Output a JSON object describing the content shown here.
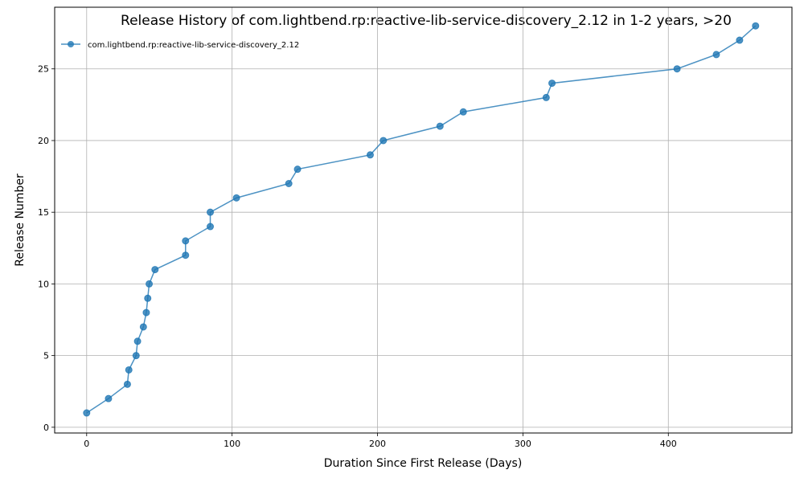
{
  "chart_data": {
    "type": "line",
    "title": "Release History of com.lightbend.rp:reactive-lib-service-discovery_2.12 in 1-2 years, >20",
    "xlabel": "Duration Since First Release (Days)",
    "ylabel": "Release Number",
    "xlim": [
      -22,
      485
    ],
    "ylim": [
      -0.4,
      29.3
    ],
    "xticks": [
      0,
      100,
      200,
      300,
      400
    ],
    "yticks": [
      0,
      5,
      10,
      15,
      20,
      25
    ],
    "grid": true,
    "legend_position": "top-left",
    "color": "#1f77b4",
    "series": [
      {
        "name": "com.lightbend.rp:reactive-lib-service-discovery_2.12",
        "x": [
          0,
          15,
          28,
          29,
          34,
          35,
          39,
          41,
          42,
          43,
          47,
          68,
          68,
          85,
          85,
          103,
          139,
          145,
          195,
          204,
          243,
          259,
          316,
          320,
          406,
          433,
          449,
          460
        ],
        "y": [
          1,
          2,
          3,
          4,
          5,
          6,
          7,
          8,
          9,
          10,
          11,
          12,
          13,
          14,
          15,
          16,
          17,
          18,
          19,
          20,
          21,
          22,
          23,
          24,
          25,
          26,
          27,
          28
        ]
      }
    ]
  }
}
